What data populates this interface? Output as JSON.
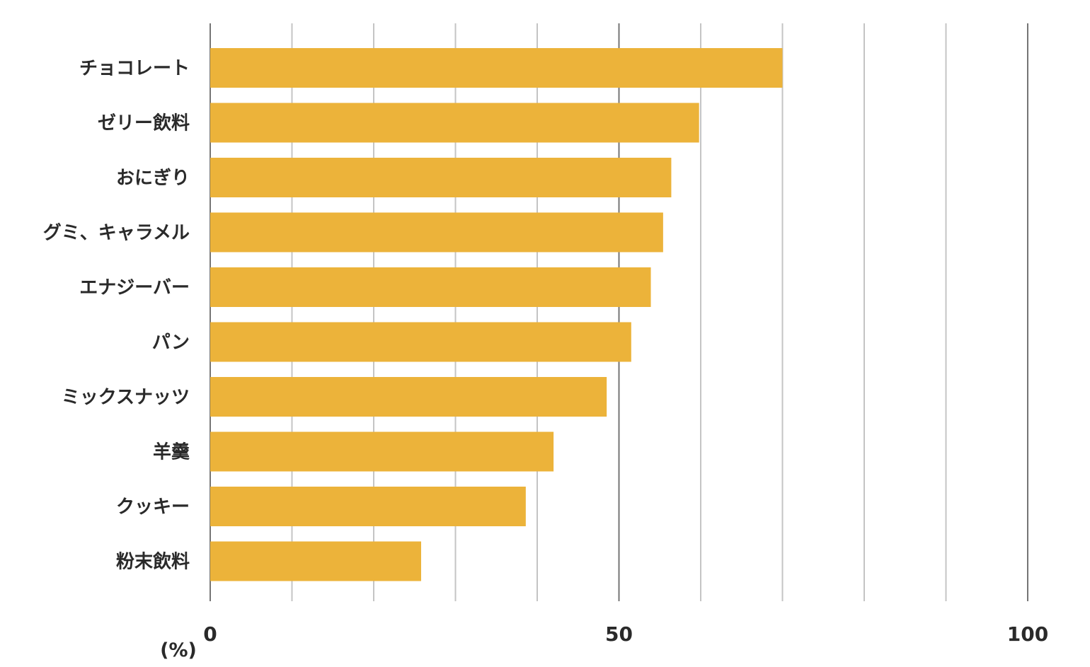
{
  "chart_data": {
    "type": "bar",
    "orientation": "horizontal",
    "title": "",
    "xlabel": "",
    "ylabel": "",
    "unit_label": "(%)",
    "categories": [
      "チョコレート",
      "ゼリー飲料",
      "おにぎり",
      "グミ、キャラメル",
      "エナジーバー",
      "パン",
      "ミックスナッツ",
      "羊羹",
      "クッキー",
      "粉末飲料"
    ],
    "values": [
      70,
      59.8,
      56.4,
      55.4,
      53.9,
      51.5,
      48.5,
      42,
      38.6,
      25.8
    ],
    "xlim": [
      0,
      100
    ],
    "xticks": [
      0,
      50,
      100
    ],
    "tick_labels": [
      "0",
      "50",
      "100"
    ],
    "gridlines": [
      0,
      10,
      20,
      30,
      40,
      50,
      60,
      70,
      80,
      90,
      100
    ],
    "major_gridlines": [
      0,
      50,
      100
    ],
    "grid": true,
    "legend": "none",
    "bar_color": "#ECB33A",
    "major_grid_color": "#757575",
    "minor_grid_color": "#C4C4C4",
    "text_color": "#2a2a2a"
  }
}
